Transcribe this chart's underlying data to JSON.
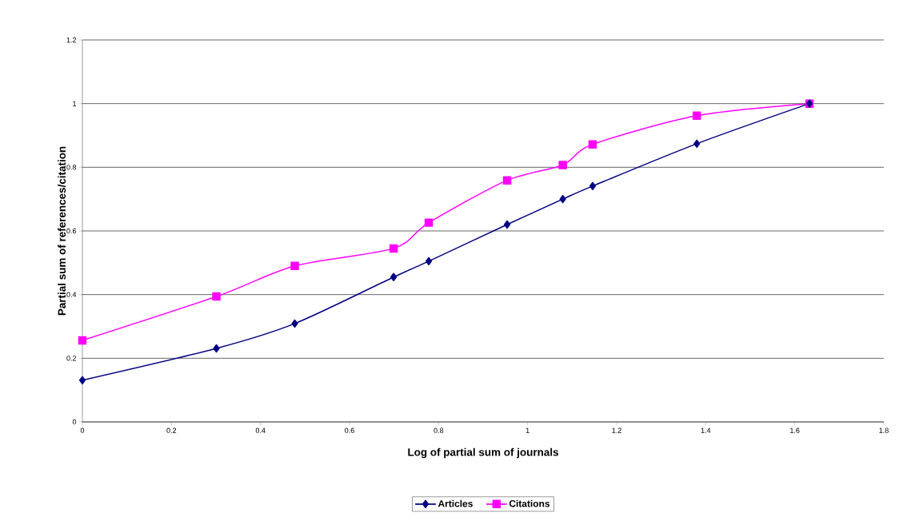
{
  "chart_data": {
    "type": "line",
    "xlabel": "Log of partial sum of journals",
    "ylabel": "Partial sum of references/citation",
    "xlim": [
      0,
      1.8
    ],
    "xticks": [
      0,
      0.2,
      0.4,
      0.6,
      0.8,
      1,
      1.2,
      1.4,
      1.6,
      1.8
    ],
    "ylim": [
      0,
      1.2
    ],
    "yticks": [
      0,
      0.2,
      0.4,
      0.6,
      0.8,
      1,
      1.2
    ],
    "x": [
      0,
      0.301,
      0.477,
      0.699,
      0.778,
      0.954,
      1.079,
      1.146,
      1.38,
      1.633
    ],
    "series": [
      {
        "name": "Articles",
        "color": "#000080",
        "marker": "diamond",
        "values": [
          0.131,
          0.231,
          0.309,
          0.455,
          0.505,
          0.62,
          0.7,
          0.741,
          0.874,
          1.0
        ]
      },
      {
        "name": "Citations",
        "color": "#ff00ff",
        "marker": "square",
        "values": [
          0.256,
          0.394,
          0.49,
          0.545,
          0.626,
          0.759,
          0.807,
          0.872,
          0.962,
          1.0
        ]
      }
    ],
    "grid": "y",
    "legend": "bottom",
    "line_style": "solid"
  }
}
